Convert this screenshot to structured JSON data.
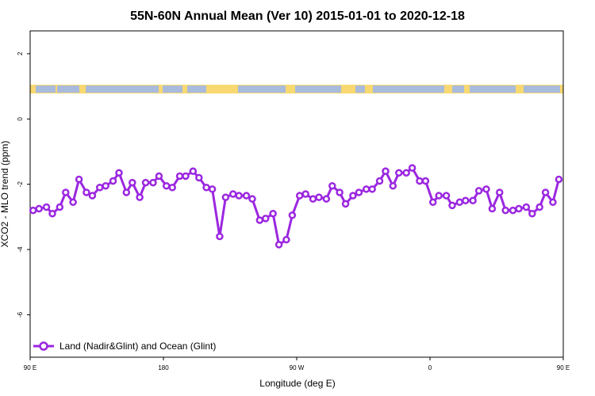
{
  "chart_data": {
    "type": "line",
    "title": "55N-60N Annual Mean (Ver 10)   2015-01-01 to 2020-12-18",
    "xlabel": "Longitude (deg E)",
    "ylabel": "XCO2 - MLO trend (ppm)",
    "xlim": [
      90,
      450
    ],
    "ylim": [
      -7.3,
      2.7
    ],
    "x_tick_values": [
      90,
      180,
      270,
      360,
      450,
      540
    ],
    "x_tick_labels": [
      "90 E",
      "180",
      "90 W",
      "0",
      "90 E",
      "180"
    ],
    "y_ticks": [
      2,
      0,
      -2,
      -4,
      -6
    ],
    "grid": false,
    "legend_position": "bottom-left",
    "series_color": "#9b27e0",
    "land_color": "#a9bbdc",
    "ocean_color": "#f8d870",
    "series": [
      {
        "name": "Land (Nadir&Glint) and Ocean (Glint)",
        "x": [
          92,
          96,
          101,
          105,
          110,
          114,
          119,
          123,
          128,
          132,
          137,
          141,
          146,
          150,
          155,
          159,
          164,
          168,
          173,
          177,
          182,
          186,
          191,
          195,
          200,
          204,
          209,
          213,
          218,
          222,
          227,
          231,
          236,
          240,
          245,
          249,
          254,
          258,
          263,
          267,
          272,
          276,
          281,
          285,
          290,
          294,
          299,
          303,
          308,
          312,
          317,
          321,
          326,
          330,
          335,
          339,
          344,
          348,
          353,
          357,
          362,
          366,
          371,
          375,
          380,
          384,
          389,
          393,
          398,
          402,
          407,
          411,
          416,
          420,
          425,
          429,
          434,
          438,
          443,
          447
        ],
        "y": [
          -2.8,
          -2.75,
          -2.7,
          -2.9,
          -2.7,
          -2.25,
          -2.55,
          -1.85,
          -2.25,
          -2.35,
          -2.1,
          -2.05,
          -1.9,
          -1.65,
          -2.25,
          -1.95,
          -2.4,
          -1.95,
          -1.95,
          -1.75,
          -2.05,
          -2.1,
          -1.75,
          -1.75,
          -1.6,
          -1.8,
          -2.1,
          -2.15,
          -3.6,
          -2.4,
          -2.3,
          -2.35,
          -2.35,
          -2.45,
          -3.1,
          -3.05,
          -2.9,
          -3.85,
          -3.7,
          -2.95,
          -2.35,
          -2.3,
          -2.45,
          -2.4,
          -2.45,
          -2.05,
          -2.25,
          -2.6,
          -2.35,
          -2.25,
          -2.15,
          -2.15,
          -1.9,
          -1.6,
          -2.05,
          -1.65,
          -1.65,
          -1.5,
          -1.9,
          -1.9,
          -2.55,
          -2.35,
          -2.35,
          -2.65,
          -2.55,
          -2.5,
          -2.5,
          -2.2,
          -2.15,
          -2.75,
          -2.25,
          -2.8,
          -2.8,
          -2.75,
          -2.7,
          -2.9,
          -2.7,
          -2.25,
          -2.55,
          -1.85
        ]
      }
    ]
  }
}
